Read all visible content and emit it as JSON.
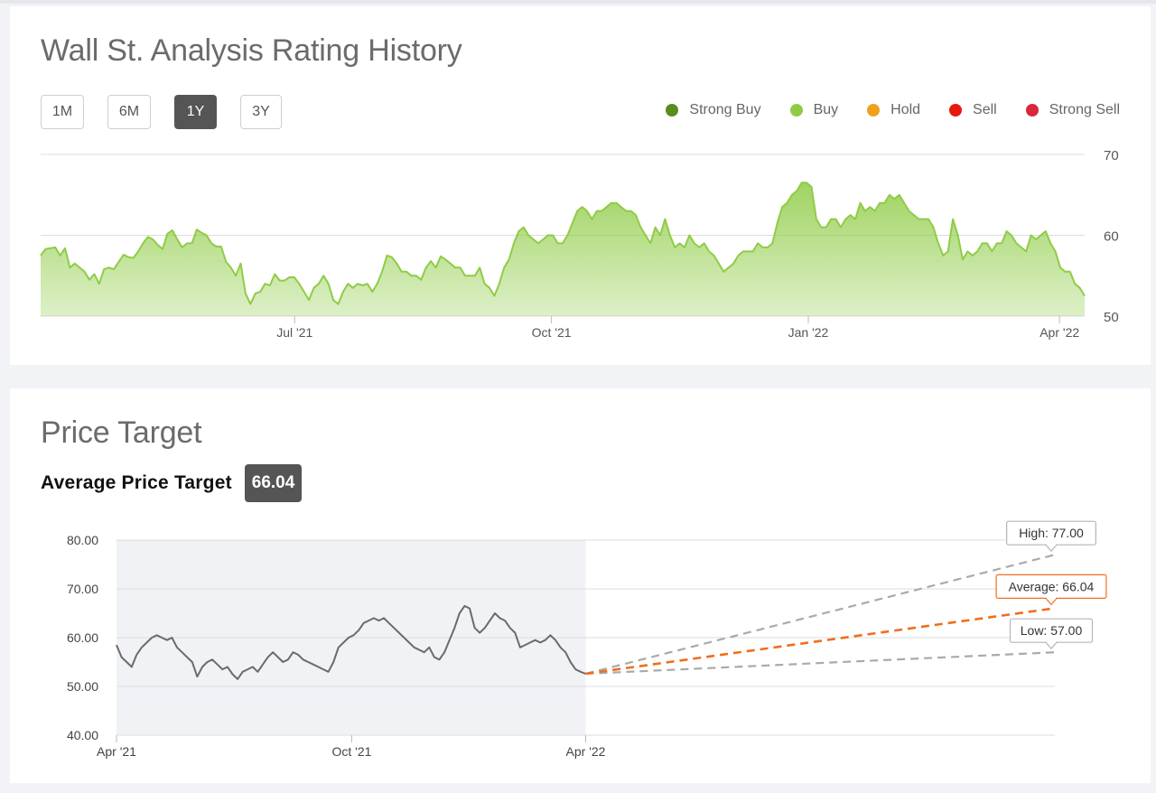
{
  "rating_card": {
    "title": "Wall St. Analysis Rating History",
    "range_buttons": [
      {
        "label": "1M",
        "active": false
      },
      {
        "label": "6M",
        "active": false
      },
      {
        "label": "1Y",
        "active": true
      },
      {
        "label": "3Y",
        "active": false
      }
    ],
    "legend": [
      {
        "label": "Strong Buy",
        "color": "#5b8c1e"
      },
      {
        "label": "Buy",
        "color": "#8fcc46"
      },
      {
        "label": "Hold",
        "color": "#f0a11c"
      },
      {
        "label": "Sell",
        "color": "#e8180c"
      },
      {
        "label": "Strong Sell",
        "color": "#d8283a"
      }
    ]
  },
  "target_card": {
    "title": "Price Target",
    "avg_label": "Average Price Target",
    "avg_value": "66.04"
  },
  "chart_data": [
    {
      "type": "area",
      "x_range": [
        "2021-04-01",
        "2022-04-10"
      ],
      "ylim": [
        50,
        70
      ],
      "y_ticks": [
        "70",
        "60",
        "50"
      ],
      "x_ticks": [
        "Jul '21",
        "Oct '21",
        "Jan '22",
        "Apr '22"
      ],
      "color": "#8fcc46",
      "grid": true,
      "values": [
        57.5,
        58.3,
        58.4,
        58.5,
        57.5,
        58.4,
        56.0,
        56.5,
        56.0,
        55.5,
        54.5,
        55.2,
        54.0,
        55.8,
        56.0,
        55.8,
        56.7,
        57.6,
        57.3,
        57.2,
        58.0,
        59.0,
        59.8,
        59.5,
        58.8,
        58.3,
        60.2,
        60.6,
        59.5,
        58.5,
        59.0,
        59.0,
        60.7,
        60.3,
        60.0,
        59.0,
        58.6,
        58.6,
        56.7,
        56.0,
        55.0,
        56.5,
        52.8,
        51.5,
        52.8,
        53.0,
        54.0,
        53.8,
        55.2,
        54.4,
        54.4,
        54.8,
        54.8,
        54.0,
        53.0,
        52.0,
        53.5,
        54.0,
        55.0,
        54.0,
        52.0,
        51.5,
        53.0,
        54.0,
        53.5,
        54.0,
        53.8,
        54.0,
        53.0,
        54.0,
        55.5,
        57.5,
        57.3,
        56.5,
        55.5,
        55.5,
        55.0,
        55.0,
        54.5,
        56.0,
        56.8,
        56.0,
        57.4,
        57.0,
        56.5,
        56.0,
        56.0,
        55.0,
        55.0,
        55.0,
        56.0,
        54.0,
        53.5,
        52.5,
        54.0,
        56.0,
        57.0,
        59.0,
        60.5,
        61.0,
        60.0,
        59.5,
        59.0,
        59.5,
        60.0,
        60.0,
        59.0,
        59.0,
        60.0,
        61.5,
        63.0,
        63.5,
        63.0,
        62.0,
        63.0,
        63.0,
        63.5,
        64.0,
        64.0,
        63.5,
        63.0,
        63.0,
        62.5,
        61.0,
        60.0,
        59.0,
        61.0,
        60.0,
        62.0,
        60.0,
        58.5,
        59.0,
        58.5,
        60.0,
        59.0,
        58.5,
        59.0,
        58.0,
        57.5,
        56.5,
        55.5,
        56.0,
        56.5,
        57.5,
        58.0,
        58.0,
        58.0,
        59.0,
        58.5,
        58.5,
        59.0,
        61.5,
        63.5,
        64.0,
        65.0,
        65.5,
        66.5,
        66.5,
        66.0,
        62.0,
        61.0,
        61.0,
        62.0,
        62.0,
        61.0,
        62.0,
        62.5,
        62.0,
        64.0,
        63.0,
        63.5,
        63.0,
        64.0,
        64.0,
        65.0,
        64.5,
        65.0,
        64.0,
        63.0,
        62.5,
        62.0,
        62.0,
        62.0,
        61.0,
        59.0,
        57.5,
        58.0,
        62.0,
        60.0,
        57.0,
        58.0,
        57.5,
        58.0,
        59.0,
        59.0,
        58.0,
        59.0,
        59.0,
        60.5,
        60.0,
        59.0,
        58.5,
        58.0,
        60.0,
        59.5,
        60.0,
        60.5,
        59.0,
        58.0,
        56.0,
        55.5,
        55.5,
        54.0,
        53.5,
        52.5
      ]
    },
    {
      "type": "line",
      "x_range": [
        "2021-04-01",
        "2023-04-01"
      ],
      "ylim": [
        40,
        80
      ],
      "y_ticks": [
        "80.00",
        "70.00",
        "60.00",
        "50.00",
        "40.00"
      ],
      "x_ticks": [
        "Apr '21",
        "Oct '21",
        "Apr '22"
      ],
      "grid": true,
      "history_color": "#6b6b6b",
      "values": [
        58.5,
        56.0,
        55.0,
        54.0,
        56.5,
        58.0,
        59.0,
        60.0,
        60.5,
        60.0,
        59.5,
        60.0,
        58.0,
        57.0,
        56.0,
        55.0,
        52.0,
        54.0,
        55.0,
        55.5,
        54.5,
        53.5,
        54.0,
        52.5,
        51.5,
        53.0,
        53.5,
        54.0,
        53.0,
        54.5,
        56.0,
        57.0,
        56.0,
        55.0,
        55.5,
        57.0,
        56.5,
        55.5,
        55.0,
        54.5,
        54.0,
        53.5,
        53.0,
        55.0,
        58.0,
        59.0,
        60.0,
        60.5,
        61.5,
        63.0,
        63.5,
        64.0,
        63.5,
        64.0,
        63.0,
        62.0,
        61.0,
        60.0,
        59.0,
        58.0,
        57.5,
        57.0,
        58.0,
        56.0,
        55.5,
        57.0,
        59.5,
        62.0,
        65.0,
        66.5,
        66.0,
        62.0,
        61.0,
        62.0,
        63.5,
        65.0,
        64.0,
        63.5,
        62.0,
        61.0,
        58.0,
        58.5,
        59.0,
        59.5,
        59.0,
        59.5,
        60.5,
        59.5,
        58.0,
        57.0,
        55.0,
        53.5,
        53.0,
        52.6
      ],
      "projection": {
        "start": 52.6,
        "high": 77.0,
        "average": 66.04,
        "low": 57.0,
        "high_color": "#aaaaaa",
        "average_color": "#f06e1e",
        "low_color": "#aaaaaa"
      },
      "labels": {
        "high": "High: 77.00",
        "average": "Average: 66.04",
        "low": "Low: 57.00"
      }
    }
  ]
}
